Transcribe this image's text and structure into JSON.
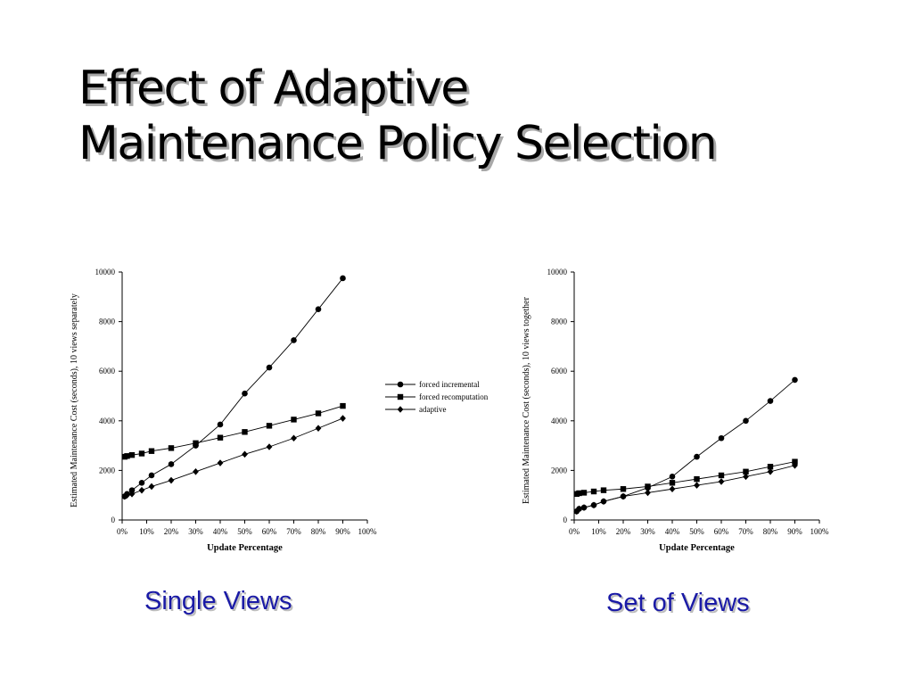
{
  "slide": {
    "title_line1": "Effect of Adaptive",
    "title_line2": "Maintenance Policy Selection",
    "caption_left": "Single Views",
    "caption_right": "Set of Views",
    "caption_color": "#1a1aa6"
  },
  "chart_data": [
    {
      "type": "line",
      "xlabel": "Update Percentage",
      "ylabel": "Estimated Maintenance Cost (seconds), 10 views separately",
      "xlim": [
        0,
        100
      ],
      "ylim": [
        0,
        10000
      ],
      "xticks": [
        0,
        10,
        20,
        30,
        40,
        50,
        60,
        70,
        80,
        90,
        100
      ],
      "xtick_labels": [
        "0%",
        "10%",
        "20%",
        "30%",
        "40%",
        "50%",
        "60%",
        "70%",
        "80%",
        "90%",
        "100%"
      ],
      "yticks": [
        0,
        2000,
        4000,
        6000,
        8000,
        10000
      ],
      "ytick_labels": [
        "0",
        "2000",
        "4000",
        "6000",
        "8000",
        "10000"
      ],
      "legend_position": "right",
      "series": [
        {
          "name": "forced incremental",
          "marker": "circle",
          "x": [
            1,
            2,
            4,
            8,
            12,
            20,
            30,
            40,
            50,
            60,
            70,
            80,
            90
          ],
          "y": [
            950,
            1050,
            1200,
            1500,
            1800,
            2250,
            3000,
            3850,
            5100,
            6150,
            7250,
            8500,
            9750
          ]
        },
        {
          "name": "forced recomputation",
          "marker": "square",
          "x": [
            1,
            2,
            4,
            8,
            12,
            20,
            30,
            40,
            50,
            60,
            70,
            80,
            90
          ],
          "y": [
            2550,
            2580,
            2620,
            2680,
            2780,
            2900,
            3100,
            3320,
            3550,
            3800,
            4050,
            4300,
            4600
          ]
        },
        {
          "name": "adaptive",
          "marker": "diamond",
          "x": [
            1,
            2,
            4,
            8,
            12,
            20,
            30,
            40,
            50,
            60,
            70,
            80,
            90
          ],
          "y": [
            950,
            1000,
            1050,
            1200,
            1350,
            1600,
            1950,
            2300,
            2650,
            2950,
            3300,
            3700,
            4100
          ]
        }
      ]
    },
    {
      "type": "line",
      "xlabel": "Update Percentage",
      "ylabel": "Estimated Maintenance Cost (seconds), 10 views together",
      "xlim": [
        0,
        100
      ],
      "ylim": [
        0,
        10000
      ],
      "xticks": [
        0,
        10,
        20,
        30,
        40,
        50,
        60,
        70,
        80,
        90,
        100
      ],
      "xtick_labels": [
        "0%",
        "10%",
        "20%",
        "30%",
        "40%",
        "50%",
        "60%",
        "70%",
        "80%",
        "90%",
        "100%"
      ],
      "yticks": [
        0,
        2000,
        4000,
        6000,
        8000,
        10000
      ],
      "ytick_labels": [
        "0",
        "2000",
        "4000",
        "6000",
        "8000",
        "10000"
      ],
      "series": [
        {
          "name": "forced incremental",
          "marker": "circle",
          "x": [
            1,
            2,
            4,
            8,
            12,
            20,
            30,
            40,
            50,
            60,
            70,
            80,
            90
          ],
          "y": [
            350,
            450,
            500,
            600,
            750,
            950,
            1300,
            1750,
            2550,
            3300,
            4000,
            4800,
            5650
          ]
        },
        {
          "name": "forced recomputation",
          "marker": "square",
          "x": [
            1,
            2,
            4,
            8,
            12,
            20,
            30,
            40,
            50,
            60,
            70,
            80,
            90
          ],
          "y": [
            1050,
            1080,
            1100,
            1150,
            1200,
            1250,
            1350,
            1500,
            1650,
            1800,
            1950,
            2150,
            2350
          ]
        },
        {
          "name": "adaptive",
          "marker": "diamond",
          "x": [
            1,
            2,
            4,
            8,
            12,
            20,
            30,
            40,
            50,
            60,
            70,
            80,
            90
          ],
          "y": [
            350,
            450,
            500,
            600,
            750,
            950,
            1100,
            1250,
            1400,
            1550,
            1750,
            1950,
            2200
          ]
        }
      ]
    }
  ]
}
